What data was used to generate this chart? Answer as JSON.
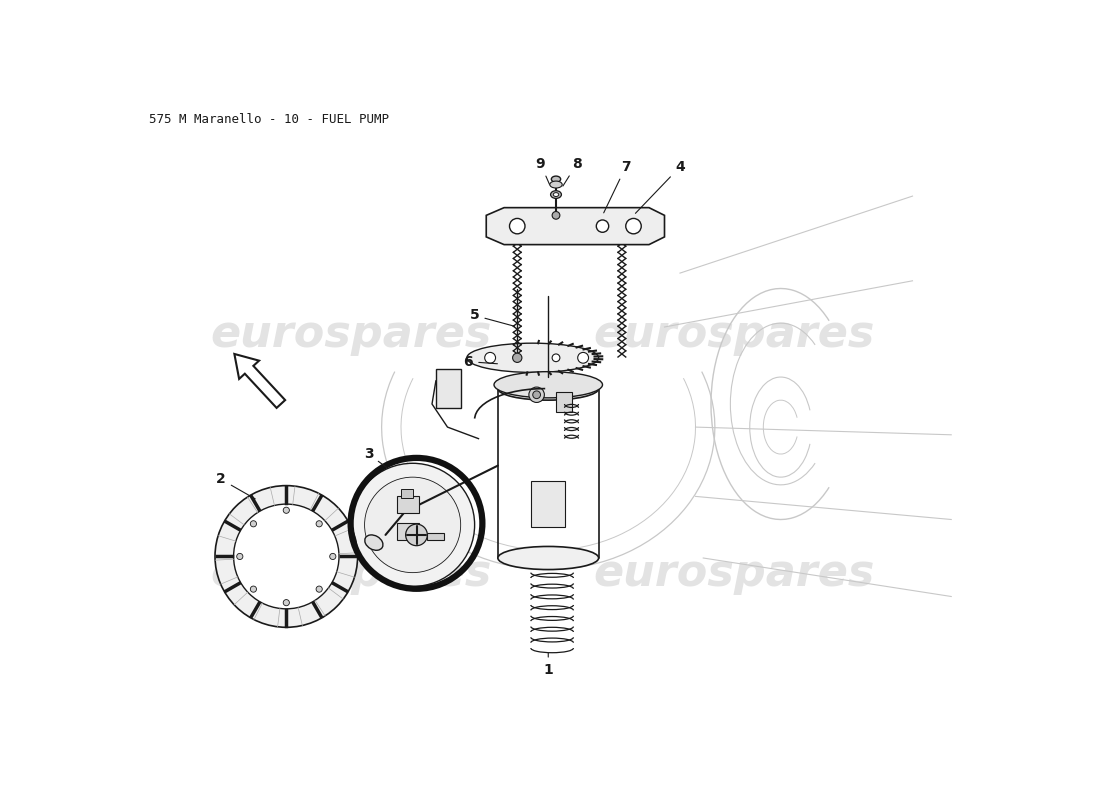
{
  "title": "575 M Maranello - 10 - FUEL PUMP",
  "background_color": "#ffffff",
  "watermark_text": "eurospares",
  "watermark_color": "#cccccc",
  "line_color": "#1a1a1a",
  "gray_color": "#c8c8c8",
  "label_fontsize": 10,
  "title_fontsize": 9,
  "watermark_fontsize": 32
}
